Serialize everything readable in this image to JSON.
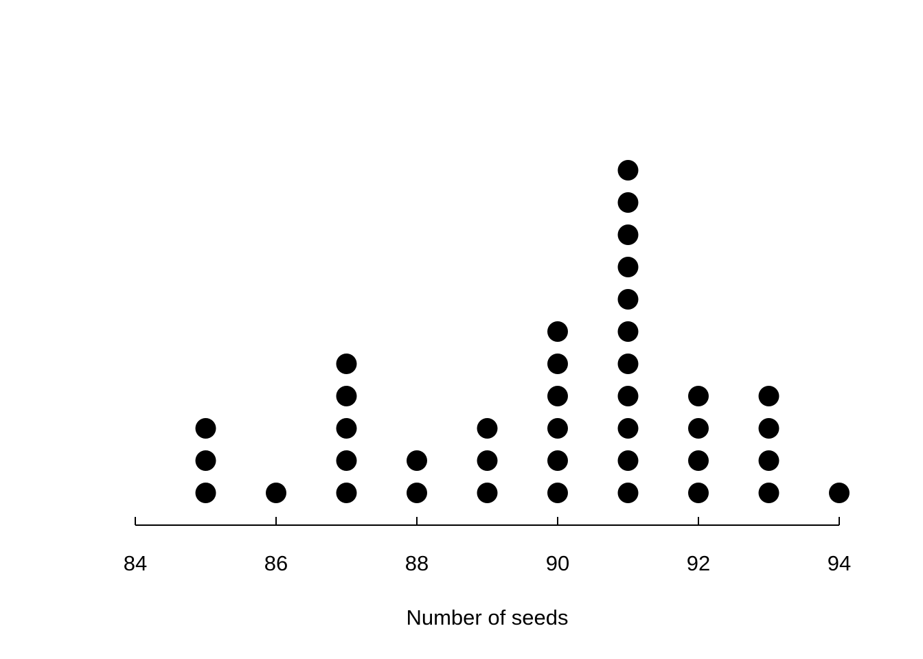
{
  "chart_data": {
    "type": "dotplot",
    "title": "",
    "xlabel": "Number of seeds",
    "ylabel": "",
    "x": [
      85,
      86,
      87,
      88,
      89,
      90,
      91,
      92,
      93,
      94
    ],
    "counts": [
      3,
      1,
      5,
      2,
      3,
      6,
      11,
      4,
      4,
      1
    ],
    "n_total": 40,
    "xlim": [
      84,
      94
    ],
    "x_ticks": [
      "84",
      "86",
      "88",
      "90",
      "92",
      "94"
    ],
    "grid": false,
    "legend": false,
    "dot_color": "#000000",
    "axis_color": "#000000",
    "background_color": "#ffffff"
  }
}
